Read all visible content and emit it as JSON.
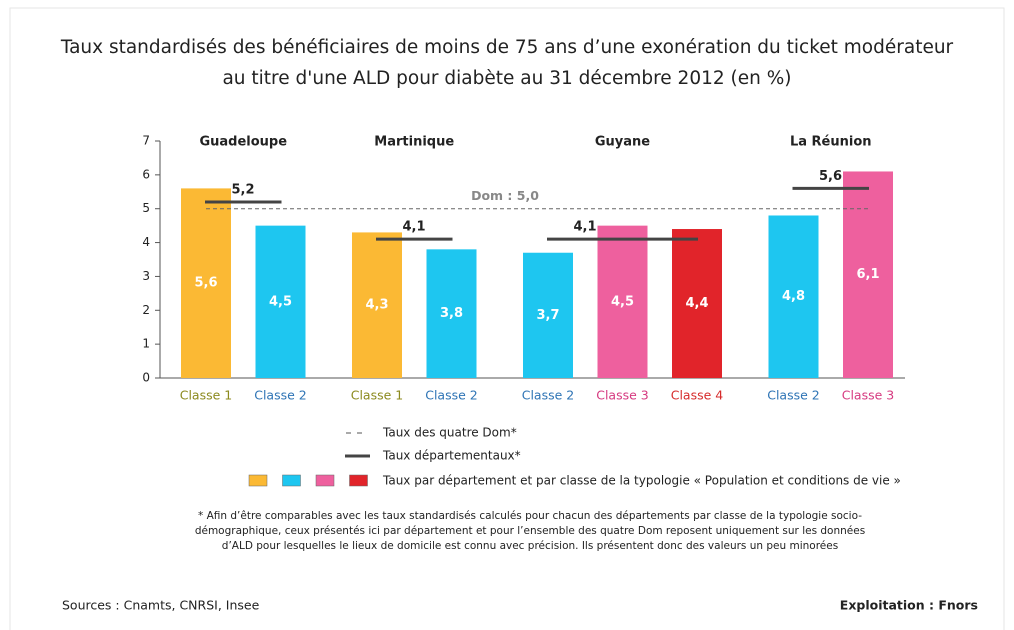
{
  "chart_data": {
    "type": "bar",
    "title": [
      "Taux standardisés des bénéficiaires de moins de 75 ans d’une exonération du ticket modérateur",
      "au titre d'une ALD pour diabète au 31 décembre 2012 (en %)"
    ],
    "ylim": [
      0,
      7
    ],
    "yticks": [
      0,
      1,
      2,
      3,
      4,
      5,
      6,
      7
    ],
    "reference": {
      "value": 5.0,
      "label": "Dom : 5,0"
    },
    "groups": [
      {
        "name": "Guadeloupe",
        "categories": [
          "Classe 1",
          "Classe 2"
        ],
        "values": [
          5.6,
          4.5
        ],
        "value_labels": [
          "5,6",
          "4,5"
        ],
        "colors": [
          "#fbb934",
          "#1ec6f0"
        ],
        "label_colors": [
          "#8c8a1e",
          "#2e74b5"
        ],
        "rate": 5.2,
        "rate_label": "5,2"
      },
      {
        "name": "Martinique",
        "categories": [
          "Classe 1",
          "Classe 2"
        ],
        "values": [
          4.3,
          3.8
        ],
        "value_labels": [
          "4,3",
          "3,8"
        ],
        "colors": [
          "#fbb934",
          "#1ec6f0"
        ],
        "label_colors": [
          "#8c8a1e",
          "#2e74b5"
        ],
        "rate": 4.1,
        "rate_label": "4,1"
      },
      {
        "name": "Guyane",
        "categories": [
          "Classe 2",
          "Classe 3",
          "Classe 4"
        ],
        "values": [
          3.7,
          4.5,
          4.4
        ],
        "value_labels": [
          "3,7",
          "4,5",
          "4,4"
        ],
        "colors": [
          "#1ec6f0",
          "#ee609e",
          "#e1242a"
        ],
        "label_colors": [
          "#2e74b5",
          "#d63a80",
          "#d62b2b"
        ],
        "rate": 4.1,
        "rate_label": "4,1"
      },
      {
        "name": "La Réunion",
        "categories": [
          "Classe 2",
          "Classe 3"
        ],
        "values": [
          4.8,
          6.1
        ],
        "value_labels": [
          "4,8",
          "6,1"
        ],
        "colors": [
          "#1ec6f0",
          "#ee609e"
        ],
        "label_colors": [
          "#2e74b5",
          "#d63a80"
        ],
        "rate": 5.6,
        "rate_label": "5,6"
      }
    ],
    "legend": {
      "reference": "Taux des quatre Dom*",
      "rate": "Taux départementaux*",
      "classes": "Taux par département et par classe de la typologie « Population et conditions de vie »",
      "class_colors": [
        "#fbb934",
        "#1ec6f0",
        "#ee609e",
        "#e1242a"
      ]
    },
    "footnote": [
      "* Afin d’être comparables avec les taux standardisés calculés pour chacun des départements par classe de la typologie socio-",
      "démographique, ceux présentés ici par département et pour l’ensemble des quatre Dom reposent uniquement sur les données",
      "d’ALD pour lesquelles le lieux de domicile est connu avec précision. Ils présentent donc des valeurs un peu minorées"
    ],
    "source": "Sources : Cnamts, CNRSI, Insee",
    "credit": "Exploitation : Fnors"
  }
}
